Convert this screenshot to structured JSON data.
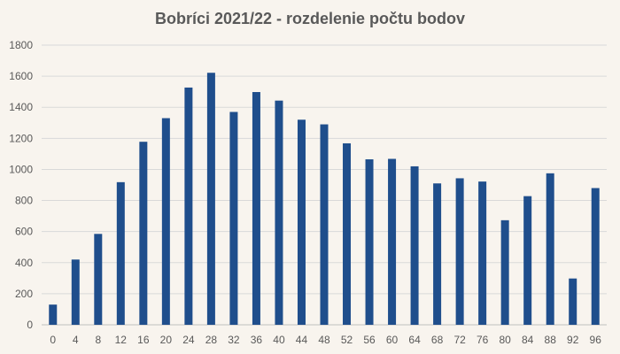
{
  "chart_data": {
    "type": "bar",
    "title": "Bobríci 2021/22 - rozdelenie počtu bodov",
    "xlabel": "",
    "ylabel": "",
    "categories": [
      "0",
      "4",
      "8",
      "12",
      "16",
      "20",
      "24",
      "28",
      "32",
      "36",
      "40",
      "44",
      "48",
      "52",
      "56",
      "60",
      "64",
      "68",
      "72",
      "76",
      "80",
      "84",
      "88",
      "92",
      "96"
    ],
    "values": [
      130,
      420,
      585,
      918,
      1178,
      1330,
      1527,
      1622,
      1370,
      1498,
      1443,
      1320,
      1290,
      1168,
      1065,
      1068,
      1020,
      910,
      943,
      922,
      673,
      828,
      975,
      298,
      880
    ],
    "ylim": [
      0,
      1800
    ],
    "yticks": [
      0,
      200,
      400,
      600,
      800,
      1000,
      1200,
      1400,
      1600,
      1800
    ],
    "grid": true,
    "legend": "none",
    "colors": {
      "bar": "#1f4e8c",
      "background": "#f8f4ee",
      "grid": "#d9d9d9",
      "text": "#595959"
    }
  }
}
